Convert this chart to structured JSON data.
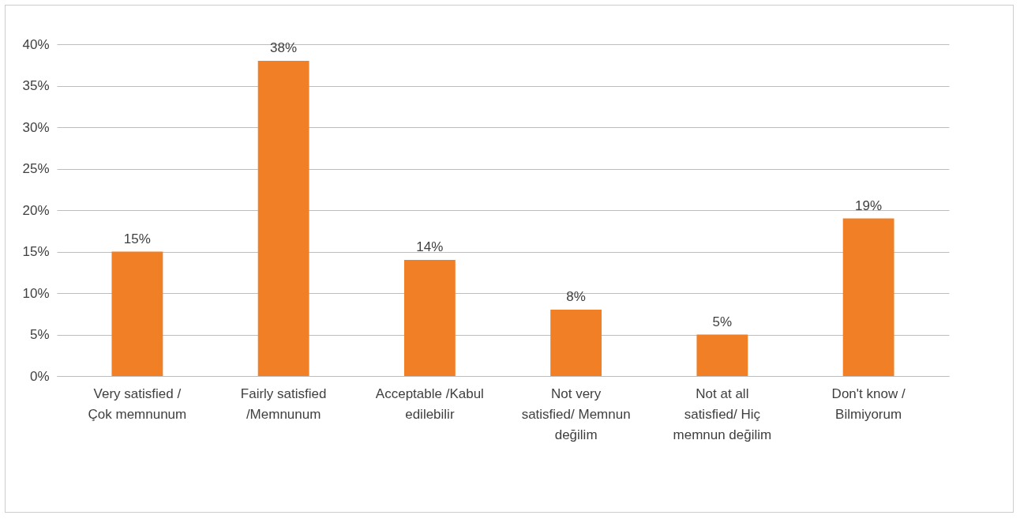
{
  "chart_data": {
    "type": "bar",
    "categories": [
      "Very satisfied / Çok memnunum",
      "Fairly satisfied /Memnunum",
      "Acceptable /Kabul edilebilir",
      "Not very satisfied/ Memnun değilim",
      "Not at all satisfied/ Hiç memnun değilim",
      "Don't know / Bilmiyorum"
    ],
    "values": [
      15,
      38,
      14,
      8,
      5,
      19
    ],
    "value_labels": [
      "15%",
      "38%",
      "14%",
      "8%",
      "5%",
      "19%"
    ],
    "color": "#f07f26",
    "ylim": [
      0,
      40
    ],
    "yticks": [
      {
        "value": 0,
        "label": "0%"
      },
      {
        "value": 5,
        "label": "5%"
      },
      {
        "value": 10,
        "label": "10%"
      },
      {
        "value": 15,
        "label": "15%"
      },
      {
        "value": 20,
        "label": "20%"
      },
      {
        "value": 25,
        "label": "25%"
      },
      {
        "value": 30,
        "label": "30%"
      },
      {
        "value": 35,
        "label": "35%"
      },
      {
        "value": 40,
        "label": "40%"
      }
    ],
    "grid": "y"
  }
}
